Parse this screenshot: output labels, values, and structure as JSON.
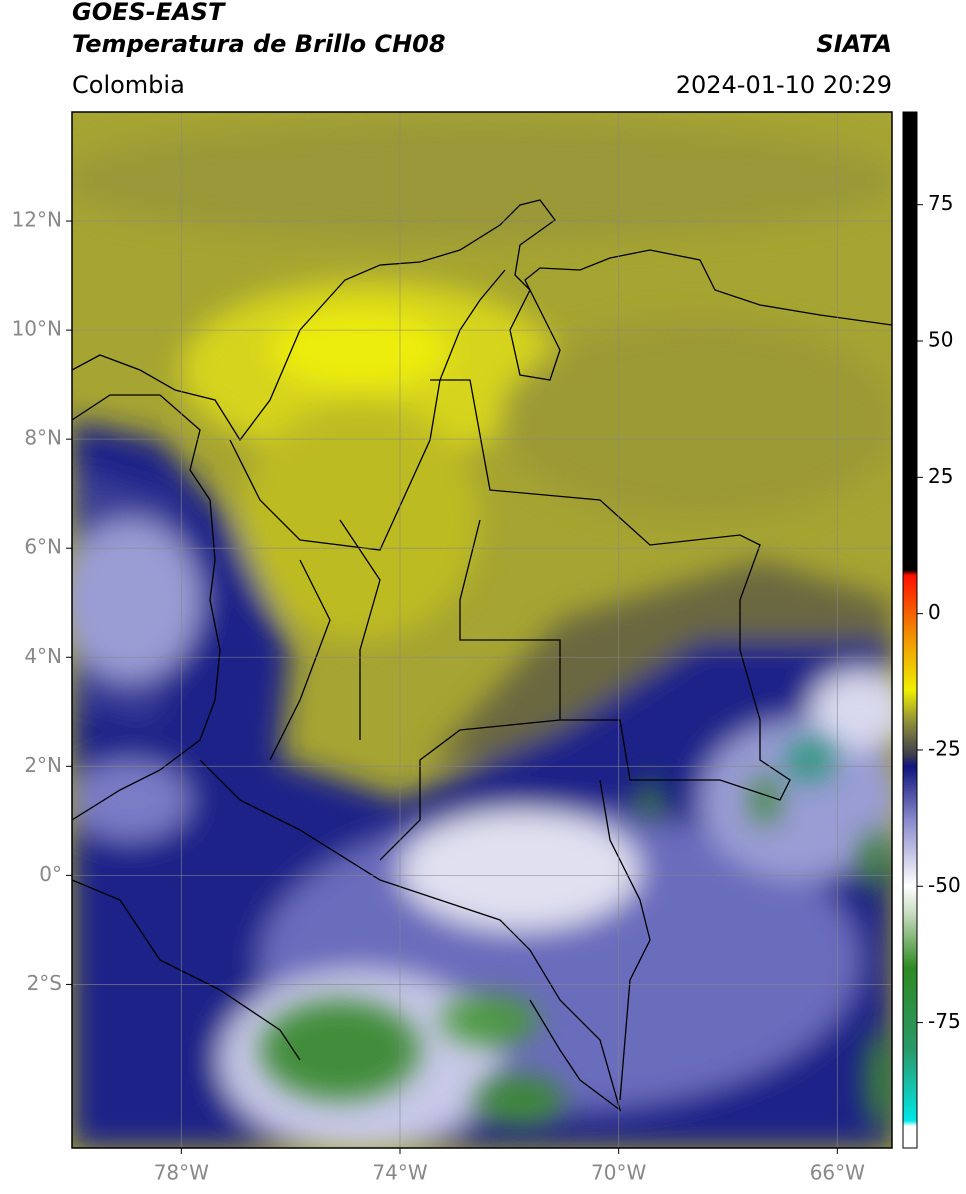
{
  "header": {
    "title": "GOES-EAST",
    "subtitle": "Temperatura de Brillo CH08",
    "source": "SIATA",
    "region": "Colombia",
    "datetime": "2024-01-10 20:29"
  },
  "map": {
    "xlim": [
      -80,
      -65
    ],
    "ylim": [
      -5,
      14
    ],
    "xticks": [
      {
        "value": -78,
        "label": "78°W"
      },
      {
        "value": -74,
        "label": "74°W"
      },
      {
        "value": -70,
        "label": "70°W"
      },
      {
        "value": -66,
        "label": "66°W"
      }
    ],
    "yticks": [
      {
        "value": 12,
        "label": "12°N"
      },
      {
        "value": 10,
        "label": "10°N"
      },
      {
        "value": 8,
        "label": "8°N"
      },
      {
        "value": 6,
        "label": "6°N"
      },
      {
        "value": 4,
        "label": "4°N"
      },
      {
        "value": 2,
        "label": "2°N"
      },
      {
        "value": 0,
        "label": "0°"
      },
      {
        "value": -2,
        "label": "2°S"
      }
    ],
    "grid": true
  },
  "colorbar": {
    "lim": [
      -98,
      92
    ],
    "ticks": [
      75,
      50,
      25,
      0,
      -25,
      -50,
      -75
    ],
    "stops": [
      {
        "value": -98,
        "color": "#ffffff"
      },
      {
        "value": -94,
        "color": "#ffffff"
      },
      {
        "value": -93,
        "color": "#00e8e8"
      },
      {
        "value": -80,
        "color": "#2a9a6a"
      },
      {
        "value": -65,
        "color": "#2e8a22"
      },
      {
        "value": -55,
        "color": "#c8dcc0"
      },
      {
        "value": -50,
        "color": "#ffffff"
      },
      {
        "value": -38,
        "color": "#8a8ccc"
      },
      {
        "value": -28,
        "color": "#10147e"
      },
      {
        "value": -26,
        "color": "#3c3c4c"
      },
      {
        "value": -20,
        "color": "#8c8c3c"
      },
      {
        "value": -14,
        "color": "#f0f000"
      },
      {
        "value": -4,
        "color": "#f09000"
      },
      {
        "value": 7,
        "color": "#ff1000"
      },
      {
        "value": 8,
        "color": "#000000"
      },
      {
        "value": 92,
        "color": "#000000"
      }
    ]
  }
}
